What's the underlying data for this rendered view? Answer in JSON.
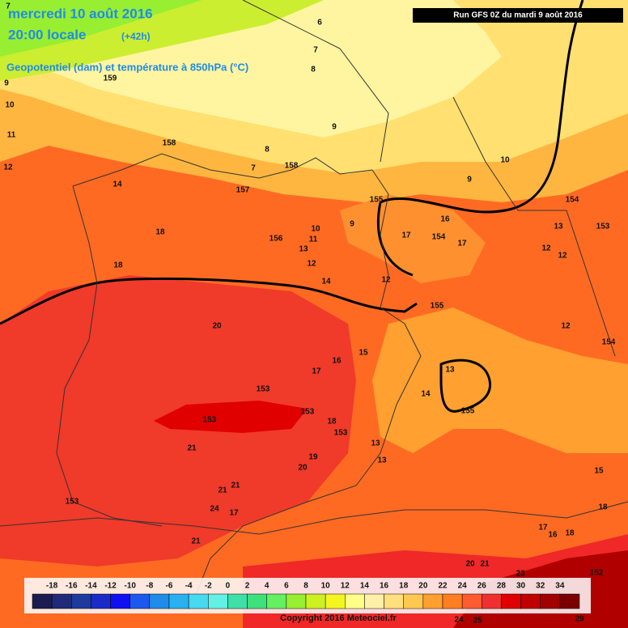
{
  "header": {
    "title": "mercredi 10 août 2016",
    "time": "20:00 locale",
    "lead": "(+42h)",
    "subtitle": "Geopotentiel (dam) et température à 850hPa (°C)",
    "run": "Run GFS 0Z du mardi 9 août 2016"
  },
  "colorbar": {
    "labels": [
      -18,
      -16,
      -14,
      -12,
      -10,
      -8,
      -6,
      -4,
      -2,
      0,
      2,
      4,
      6,
      8,
      10,
      12,
      14,
      16,
      18,
      20,
      22,
      24,
      26,
      28,
      30,
      32,
      34
    ],
    "colors": [
      "#1c1c50",
      "#1f2a78",
      "#1d3a9c",
      "#1a2bc8",
      "#1010f0",
      "#1c58ee",
      "#1e8ce8",
      "#29b0f0",
      "#48d8f0",
      "#64f0e4",
      "#3ee0a8",
      "#3ee07c",
      "#64f060",
      "#98ee30",
      "#ccf020",
      "#f4f420",
      "#ffff88",
      "#fff0a8",
      "#ffe07c",
      "#ffc850",
      "#ffa030",
      "#ff7e22",
      "#ff5a30",
      "#f03030",
      "#e00000",
      "#c00000",
      "#a00000",
      "#7a0000"
    ]
  },
  "map_labels": [
    "7",
    "159",
    "9",
    "10",
    "11",
    "12",
    "158",
    "14",
    "157",
    "7",
    "158",
    "6",
    "7",
    "8",
    "9",
    "8",
    "155",
    "9",
    "10",
    "11",
    "12",
    "13",
    "156",
    "9",
    "10",
    "154",
    "153",
    "13",
    "12",
    "12",
    "16",
    "17",
    "154",
    "17",
    "18",
    "18",
    "14",
    "12",
    "155",
    "12",
    "154",
    "20",
    "16",
    "15",
    "17",
    "13",
    "14",
    "155",
    "153",
    "153",
    "153",
    "18",
    "153",
    "21",
    "13",
    "19",
    "20",
    "13",
    "21",
    "21",
    "153",
    "24",
    "17",
    "15",
    "18",
    "17",
    "16",
    "18",
    "21",
    "20",
    "21",
    "23",
    "152",
    "24",
    "25",
    "29"
  ],
  "footer": {
    "copyright": "Copyright 2016 Meteociel.fr"
  }
}
